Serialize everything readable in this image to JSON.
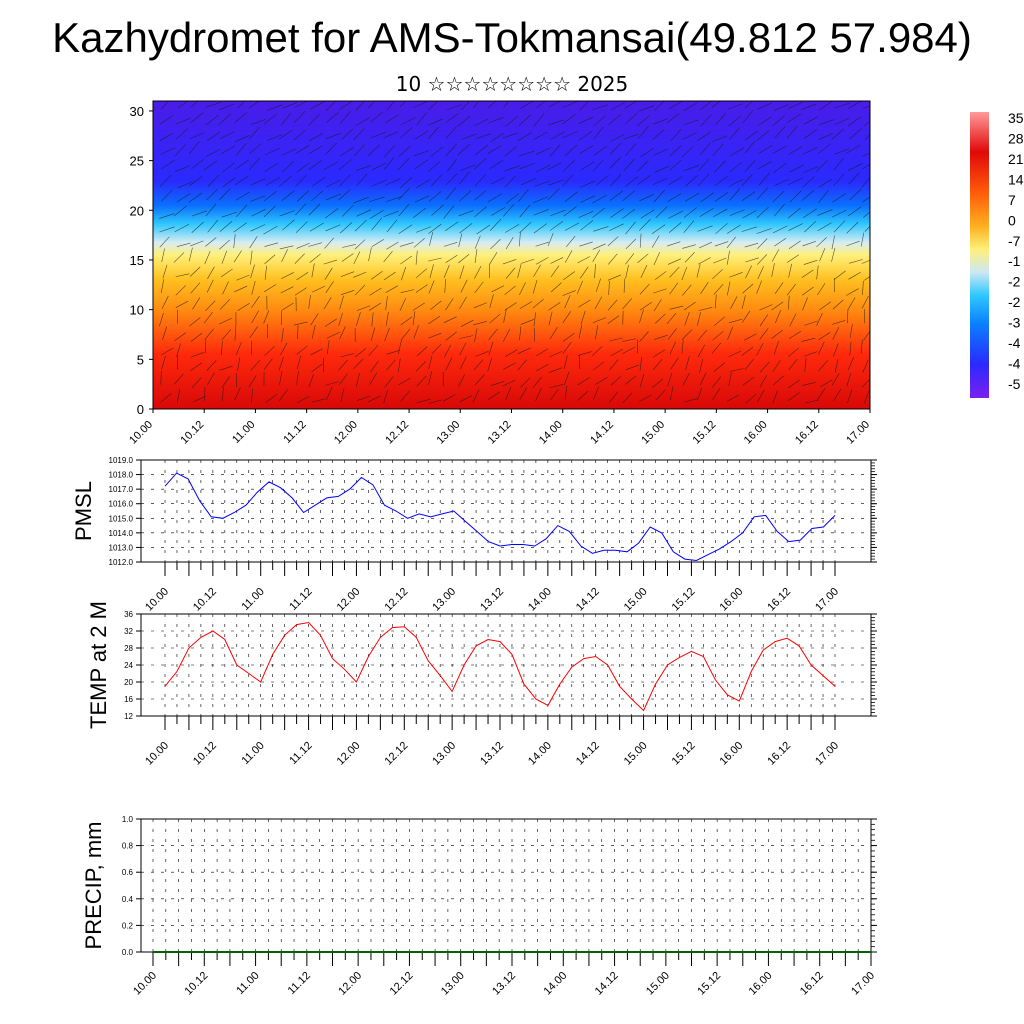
{
  "title": "Kazhydromet for AMS-Tokmansai(49.812 57.984)",
  "subtitle": "10 ☆☆☆☆☆☆☆☆ 2025",
  "time_ticks": [
    "10.00",
    "10.12",
    "11.00",
    "11.12",
    "12.00",
    "12.12",
    "13.00",
    "13.12",
    "14.00",
    "14.12",
    "15.00",
    "15.12",
    "16.00",
    "16.12",
    "17.00"
  ],
  "chart_data": [
    {
      "type": "heatmap",
      "name": "cross-section",
      "x_ticks": [
        "10.00",
        "10.12",
        "11.00",
        "11.12",
        "12.00",
        "12.12",
        "13.00",
        "13.12",
        "14.00",
        "14.12",
        "15.00",
        "15.12",
        "16.00",
        "16.12",
        "17.00"
      ],
      "y_ticks": [
        0,
        5,
        10,
        15,
        20,
        25,
        30
      ],
      "ylim": [
        0,
        31
      ],
      "colorbar_labels": [
        "35",
        "28",
        "21",
        "14",
        "7",
        "0",
        "-7",
        "-1",
        "-2",
        "-2",
        "-3",
        "-4",
        "-4",
        "-5"
      ],
      "colors": [
        "#5a14e6",
        "#2a2aff",
        "#0a7cff",
        "#18c4ff",
        "#c8e6f0",
        "#fff07a",
        "#ffd030",
        "#ff9a14",
        "#ff5a0a",
        "#ff2010",
        "#e60a0a",
        "#ff6060"
      ],
      "vector_barbs": true
    },
    {
      "type": "line",
      "name": "PMSL",
      "ylabel": "PMSL",
      "ylim": [
        1012.0,
        1019.0
      ],
      "y_ticks": [
        "1012.0",
        "1013.0",
        "1014.0",
        "1015.0",
        "1016.0",
        "1017.0",
        "1018.0",
        "1019.0"
      ],
      "x_ticks": [
        "10.00",
        "10.12",
        "11.00",
        "11.12",
        "12.00",
        "12.12",
        "13.00",
        "13.12",
        "14.00",
        "14.12",
        "15.00",
        "15.12",
        "16.00",
        "16.12",
        "17.00"
      ],
      "color": "#0000ff",
      "values": [
        1017.2,
        1018.1,
        1017.7,
        1016.2,
        1015.1,
        1015.0,
        1015.4,
        1015.9,
        1016.8,
        1017.5,
        1017.1,
        1016.4,
        1015.4,
        1015.9,
        1016.4,
        1016.5,
        1017.0,
        1017.8,
        1017.3,
        1015.9,
        1015.5,
        1015.0,
        1015.3,
        1015.1,
        1015.3,
        1015.5,
        1014.8,
        1014.1,
        1013.4,
        1013.1,
        1013.2,
        1013.2,
        1013.1,
        1013.6,
        1014.5,
        1014.1,
        1013.1,
        1012.6,
        1012.8,
        1012.8,
        1012.7,
        1013.3,
        1014.4,
        1014.0,
        1012.7,
        1012.2,
        1012.1,
        1012.5,
        1012.9,
        1013.4,
        1014.0,
        1015.1,
        1015.2,
        1014.1,
        1013.4,
        1013.5,
        1014.3,
        1014.4,
        1015.2
      ]
    },
    {
      "type": "line",
      "name": "TEMP at 2 M",
      "ylabel": "TEMP at 2 M",
      "ylim": [
        12,
        36
      ],
      "y_ticks": [
        "12",
        "16",
        "20",
        "24",
        "28",
        "32",
        "36"
      ],
      "x_ticks": [
        "10.00",
        "10.12",
        "11.00",
        "11.12",
        "12.00",
        "12.12",
        "13.00",
        "13.12",
        "14.00",
        "14.12",
        "15.00",
        "15.12",
        "16.00",
        "16.12",
        "17.00"
      ],
      "color": "#ff0000",
      "values": [
        19.0,
        22.5,
        28.0,
        30.5,
        32.0,
        30.0,
        24.0,
        22.0,
        20.0,
        26.5,
        31.0,
        33.5,
        34.0,
        31.0,
        25.5,
        23.0,
        20.0,
        26.0,
        30.5,
        32.8,
        33.0,
        30.5,
        25.0,
        21.5,
        17.8,
        24.0,
        28.5,
        30.0,
        29.5,
        26.5,
        19.5,
        16.0,
        14.5,
        19.5,
        23.5,
        25.5,
        26.0,
        24.0,
        19.0,
        16.0,
        13.3,
        19.5,
        24.0,
        25.8,
        27.2,
        26.0,
        20.5,
        17.0,
        15.5,
        22.5,
        27.5,
        29.5,
        30.3,
        28.5,
        24.0,
        21.5,
        19.0
      ]
    },
    {
      "type": "line",
      "name": "PRECIP, mm",
      "ylabel": "PRECIP, mm",
      "ylim": [
        0.0,
        1.0
      ],
      "y_ticks": [
        "0.0",
        "0.2",
        "0.4",
        "0.6",
        "0.8",
        "1.0"
      ],
      "x_ticks": [
        "10.00",
        "10.12",
        "11.00",
        "11.12",
        "12.00",
        "12.12",
        "13.00",
        "13.12",
        "14.00",
        "14.12",
        "15.00",
        "15.12",
        "16.00",
        "16.12",
        "17.00"
      ],
      "color": "#006400",
      "values": [
        0,
        0,
        0,
        0,
        0,
        0,
        0,
        0,
        0,
        0,
        0,
        0,
        0,
        0,
        0,
        0,
        0,
        0,
        0,
        0,
        0,
        0,
        0,
        0,
        0,
        0,
        0,
        0,
        0,
        0,
        0,
        0,
        0,
        0,
        0,
        0,
        0,
        0,
        0,
        0,
        0,
        0,
        0,
        0,
        0,
        0,
        0,
        0,
        0,
        0,
        0,
        0,
        0,
        0,
        0,
        0,
        0
      ]
    }
  ]
}
